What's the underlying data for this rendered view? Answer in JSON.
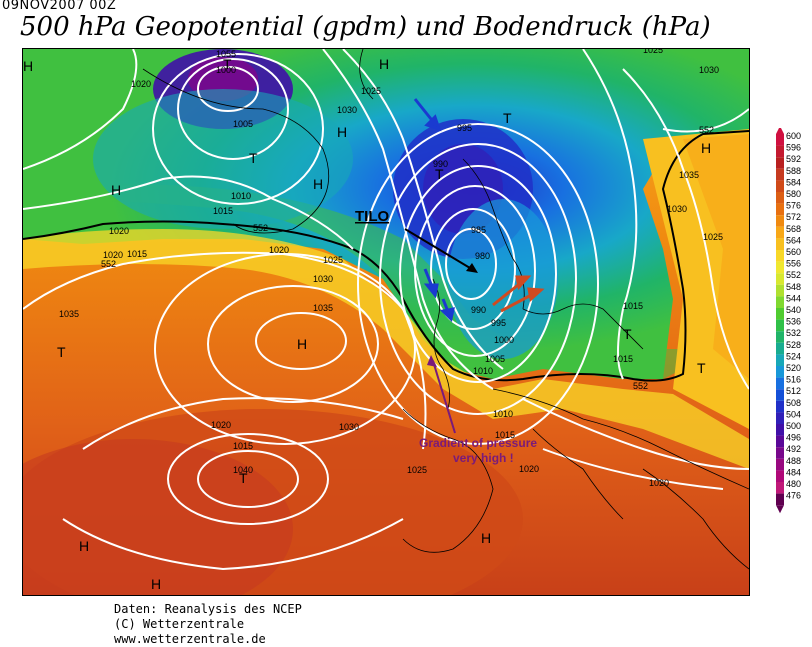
{
  "timestamp": "09NOV2007 00Z",
  "title": "500 hPa Geopotential (gpdm) und Bodendruck (hPa)",
  "credits": [
    "Daten: Reanalysis des NCEP",
    "(C) Wetterzentrale",
    "www.wetterzentrale.de"
  ],
  "annotations": {
    "storm_name": "TILO",
    "gradient_line1": "Gradient of pressure",
    "gradient_line2": "very high !",
    "storm_color": "#000000",
    "gradient_color": "#7a1a7a",
    "arrow_blue": "#1a3ad0",
    "arrow_red": "#d04a20"
  },
  "colorbar": {
    "levels": [
      "600",
      "596",
      "592",
      "588",
      "584",
      "580",
      "576",
      "572",
      "568",
      "564",
      "560",
      "556",
      "552",
      "548",
      "544",
      "540",
      "536",
      "532",
      "528",
      "524",
      "520",
      "516",
      "512",
      "508",
      "504",
      "500",
      "496",
      "492",
      "488",
      "484",
      "480",
      "476"
    ],
    "colors": [
      "#d01040",
      "#c41a30",
      "#b82020",
      "#c63a20",
      "#d04a18",
      "#dc5e14",
      "#e87010",
      "#f08a10",
      "#f8a818",
      "#f8c020",
      "#f8d828",
      "#f0e830",
      "#d8e830",
      "#b0e030",
      "#80d830",
      "#50cc30",
      "#30c048",
      "#20b468",
      "#18ac90",
      "#18a8b8",
      "#1898d8",
      "#1870e0",
      "#1450d8",
      "#2030c8",
      "#3020b8",
      "#4010a8",
      "#5a0898",
      "#78088c",
      "#980880",
      "#b00878",
      "#c01878",
      "#600050"
    ]
  },
  "pressure_labels": [
    "1000",
    "1020",
    "1025",
    "1030",
    "1055",
    "1010",
    "1005",
    "995",
    "990",
    "985",
    "980",
    "1015",
    "1030",
    "1035",
    "1040",
    "1015",
    "1020",
    "1030",
    "1025",
    "1015",
    "1010",
    "1005",
    "1000",
    "995",
    "990",
    "552",
    "552",
    "552",
    "552",
    "1035",
    "1030",
    "1025",
    "1015",
    "1020",
    "1030",
    "1035",
    "1020",
    "1015",
    "1010",
    "1025",
    "1020",
    "1025",
    "1020",
    "1020",
    "1015"
  ],
  "systems": [
    "H",
    "H",
    "H",
    "H",
    "T",
    "T",
    "T",
    "H",
    "T",
    "T",
    "H",
    "T",
    "H",
    "H",
    "H",
    "T",
    "H",
    "T",
    "H"
  ]
}
